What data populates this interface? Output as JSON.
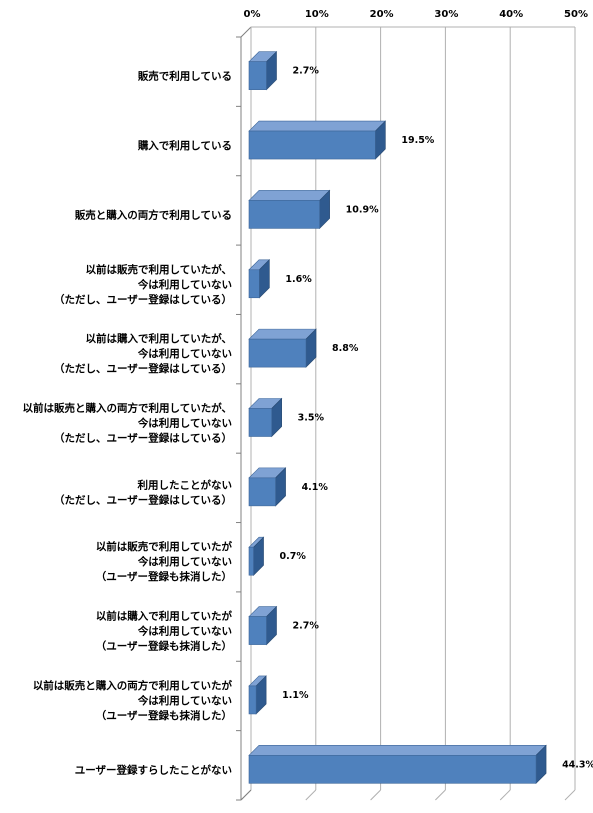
{
  "chart_data": {
    "type": "bar",
    "orientation": "horizontal",
    "title": "",
    "xlabel": "",
    "ylabel": "",
    "xlim": [
      0,
      50
    ],
    "x_ticks": [
      "0%",
      "10%",
      "20%",
      "30%",
      "40%",
      "50%"
    ],
    "x_tick_values": [
      0,
      10,
      20,
      30,
      40,
      50
    ],
    "grid": true,
    "legend": "none",
    "bar_color": "#4f81bd",
    "categories": [
      [
        "販売で利用している"
      ],
      [
        "購入で利用している"
      ],
      [
        "販売と購入の両方で利用している"
      ],
      [
        "以前は販売で利用していたが、",
        "今は利用していない",
        "（ただし、ユーザー登録はしている）"
      ],
      [
        "以前は購入で利用していたが、",
        "今は利用していない",
        "（ただし、ユーザー登録はしている）"
      ],
      [
        "以前は販売と購入の両方で利用していたが、",
        "今は利用していない",
        "（ただし、ユーザー登録はしている）"
      ],
      [
        "利用したことがない",
        "（ただし、ユーザー登録はしている）"
      ],
      [
        "以前は販売で利用していたが",
        "今は利用していない",
        "（ユーザー登録も抹消した）"
      ],
      [
        "以前は購入で利用していたが",
        "今は利用していない",
        "（ユーザー登録も抹消した）"
      ],
      [
        "以前は販売と購入の両方で利用していたが",
        "今は利用していない",
        "（ユーザー登録も抹消した）"
      ],
      [
        "ユーザー登録すらしたことがない"
      ]
    ],
    "values": [
      2.7,
      19.5,
      10.9,
      1.6,
      8.8,
      3.5,
      4.1,
      0.7,
      2.7,
      1.1,
      44.3
    ],
    "data_labels": [
      "2.7%",
      "19.5%",
      "10.9%",
      "1.6%",
      "8.8%",
      "3.5%",
      "4.1%",
      "0.7%",
      "2.7%",
      "1.1%",
      "44.3%"
    ]
  }
}
